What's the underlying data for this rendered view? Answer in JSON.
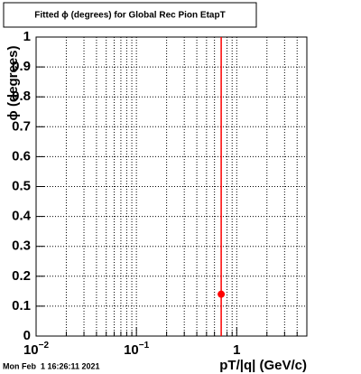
{
  "chart_data": {
    "type": "scatter",
    "title": "Fitted ϕ (degrees) for Global Rec Pion EtapT",
    "xlabel": "pT/|q| (GeV/c)",
    "ylabel": "ϕ (degrees)",
    "footer": "Mon Feb  1 16:26:11 2021",
    "xscale": "log",
    "xlim": [
      0.01,
      5
    ],
    "ylim": [
      0,
      1
    ],
    "xticks": [
      {
        "value": 0.01,
        "label": "10",
        "exponent": "−2"
      },
      {
        "value": 0.1,
        "label": "10",
        "exponent": "−1"
      },
      1
    ],
    "xminorticks": [
      0.02,
      0.03,
      0.04,
      0.05,
      0.06,
      0.07,
      0.08,
      0.09,
      0.2,
      0.3,
      0.4,
      0.5,
      0.6,
      0.7,
      0.8,
      0.9,
      2,
      3,
      4
    ],
    "yticks": [
      0,
      0.1,
      0.2,
      0.3,
      0.4,
      0.5,
      0.6,
      0.7,
      0.8,
      0.9,
      1
    ],
    "grid": true,
    "series": [
      {
        "color": "#ff0000",
        "x": [
          0.7
        ],
        "values": [
          0.14
        ]
      }
    ]
  }
}
